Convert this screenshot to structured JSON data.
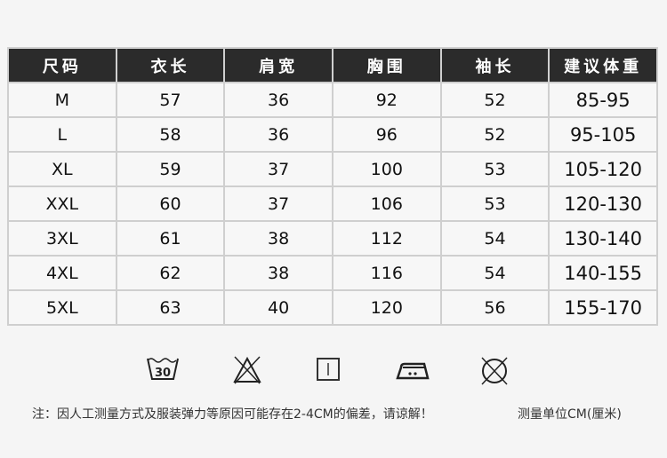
{
  "table": {
    "headers": [
      "尺码",
      "衣长",
      "肩宽",
      "胸围",
      "袖长",
      "建议体重"
    ],
    "rows": [
      [
        "M",
        "57",
        "36",
        "92",
        "52",
        "85-95"
      ],
      [
        "L",
        "58",
        "36",
        "96",
        "52",
        "95-105"
      ],
      [
        "XL",
        "59",
        "37",
        "100",
        "53",
        "105-120"
      ],
      [
        "XXL",
        "60",
        "37",
        "106",
        "53",
        "120-130"
      ],
      [
        "3XL",
        "61",
        "38",
        "112",
        "54",
        "130-140"
      ],
      [
        "4XL",
        "62",
        "38",
        "116",
        "54",
        "140-155"
      ],
      [
        "5XL",
        "63",
        "40",
        "120",
        "56",
        "155-170"
      ]
    ]
  },
  "care_icons": [
    {
      "name": "wash-30-icon",
      "label": "30"
    },
    {
      "name": "no-bleach-icon"
    },
    {
      "name": "line-dry-icon"
    },
    {
      "name": "iron-medium-icon"
    },
    {
      "name": "no-dry-clean-icon"
    }
  ],
  "note": "注：因人工测量方式及服装弹力等原因可能存在2-4CM的偏差，请谅解！",
  "unit": "测量单位CM(厘米)"
}
